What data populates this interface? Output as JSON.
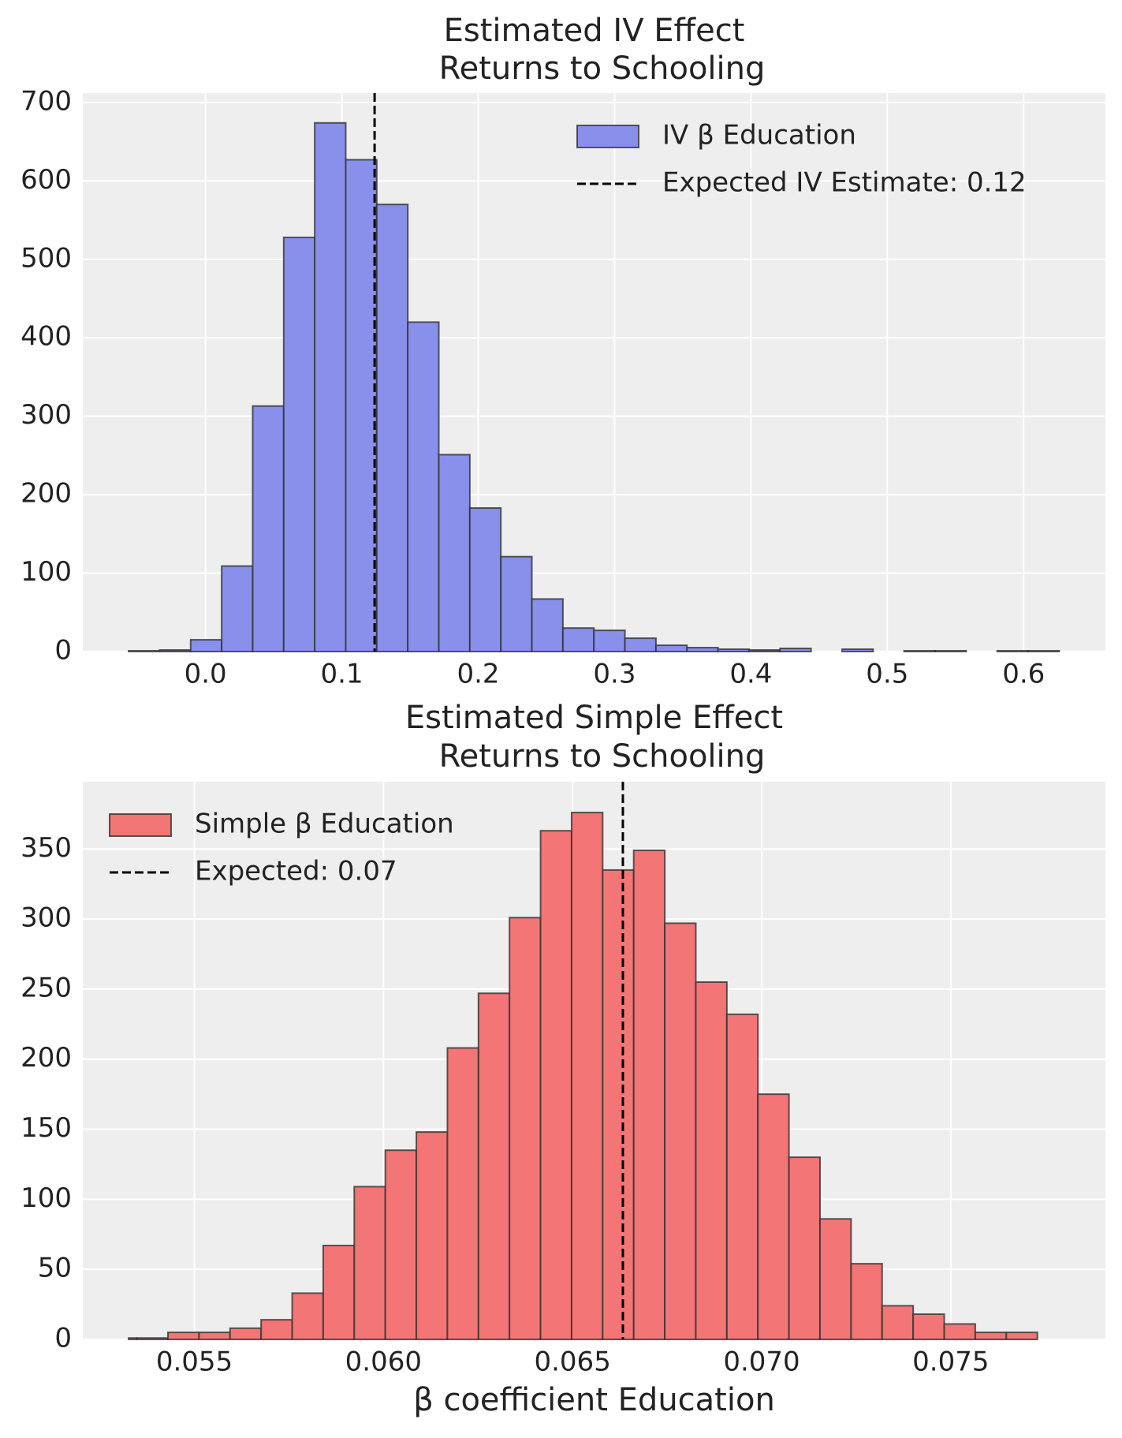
{
  "chart_data": [
    {
      "type": "histogram",
      "title": [
        "Estimated IV Effect",
        "Returns to Schooling"
      ],
      "bins": [
        -0.0564,
        -0.03365,
        -0.0109,
        0.01185,
        0.0346,
        0.05735,
        0.0801,
        0.10285,
        0.1256,
        0.14835,
        0.1711,
        0.19385,
        0.2166,
        0.23935,
        0.2621,
        0.28485,
        0.3076,
        0.33035,
        0.3531,
        0.37585,
        0.3986,
        0.42135,
        0.4441,
        0.46685,
        0.4896,
        0.51235,
        0.5351,
        0.55785,
        0.5806,
        0.60335,
        0.6261
      ],
      "series": [
        {
          "name": "IV β Education",
          "color": "#8890ec",
          "values": [
            1,
            2,
            15,
            109,
            313,
            528,
            674,
            627,
            570,
            420,
            251,
            183,
            121,
            67,
            30,
            27,
            17,
            8,
            5,
            3,
            2,
            4,
            0,
            3,
            0,
            1,
            1,
            0,
            1,
            1
          ]
        }
      ],
      "vline": {
        "value": 0.124,
        "label": "Expected IV Estimate: 0.12",
        "color": "#000000"
      },
      "xlim": [
        -0.09,
        0.66
      ],
      "xticks": [
        {
          "value": 0,
          "label": "0.0"
        },
        0.1,
        0.2,
        0.3,
        0.4,
        0.5,
        0.6
      ],
      "ylim": [
        0,
        712
      ],
      "yticks": [
        0,
        100,
        200,
        300,
        400,
        500,
        600,
        700
      ],
      "grid": true,
      "legend": "upper right"
    },
    {
      "type": "histogram",
      "title": [
        "Estimated Simple Effect",
        "Returns to Schooling"
      ],
      "xlabel": "β coefficient Education",
      "bins": [
        0.05326,
        0.053481,
        0.054302,
        0.055123,
        0.055944,
        0.056765,
        0.057586,
        0.058407,
        0.059228,
        0.060049,
        0.06087,
        0.061691,
        0.062512,
        0.063333,
        0.064154,
        0.064975,
        0.065796,
        0.066617,
        0.067438,
        0.068259,
        0.06908,
        0.069901,
        0.070722,
        0.071543,
        0.072364,
        0.073185,
        0.074006,
        0.074827,
        0.075648,
        0.076469,
        0.07729
      ],
      "series": [
        {
          "name": "Simple β Education",
          "color": "#f47575",
          "values": [
            1,
            1,
            5,
            5,
            8,
            14,
            33,
            67,
            109,
            135,
            148,
            208,
            247,
            301,
            363,
            376,
            335,
            349,
            297,
            255,
            232,
            175,
            130,
            86,
            54,
            24,
            18,
            11,
            5,
            5
          ]
        }
      ],
      "vline": {
        "value": 0.06633,
        "label": "Expected: 0.07",
        "color": "#000000"
      },
      "xlim": [
        0.05205,
        0.07909
      ],
      "xticks": [
        0.055,
        {
          "value": 0.06,
          "label": "0.060"
        },
        0.065,
        {
          "value": 0.07,
          "label": "0.070"
        },
        0.075
      ],
      "ylim": [
        0,
        398
      ],
      "yticks": [
        0,
        50,
        100,
        150,
        200,
        250,
        300,
        350
      ],
      "grid": true,
      "legend": "upper left"
    }
  ]
}
